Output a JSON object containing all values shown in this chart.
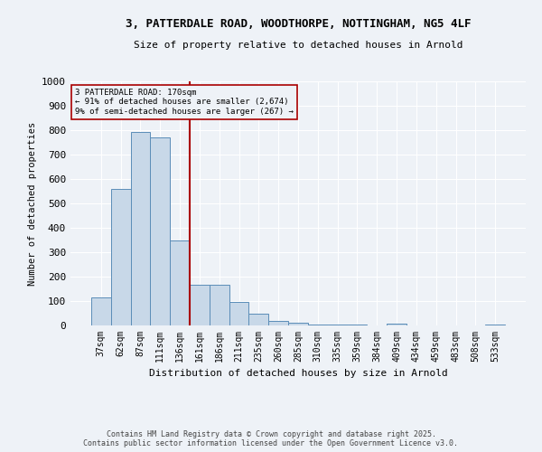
{
  "title_line1": "3, PATTERDALE ROAD, WOODTHORPE, NOTTINGHAM, NG5 4LF",
  "title_line2": "Size of property relative to detached houses in Arnold",
  "xlabel": "Distribution of detached houses by size in Arnold",
  "ylabel": "Number of detached properties",
  "bar_color": "#c8d8e8",
  "bar_edge_color": "#5b8db8",
  "categories": [
    "37sqm",
    "62sqm",
    "87sqm",
    "111sqm",
    "136sqm",
    "161sqm",
    "186sqm",
    "211sqm",
    "235sqm",
    "260sqm",
    "285sqm",
    "310sqm",
    "335sqm",
    "359sqm",
    "384sqm",
    "409sqm",
    "434sqm",
    "459sqm",
    "483sqm",
    "508sqm",
    "533sqm"
  ],
  "values": [
    113,
    560,
    793,
    770,
    348,
    165,
    165,
    98,
    50,
    18,
    12,
    5,
    2,
    2,
    0,
    8,
    0,
    0,
    0,
    0,
    3
  ],
  "ylim": [
    0,
    1000
  ],
  "yticks": [
    0,
    100,
    200,
    300,
    400,
    500,
    600,
    700,
    800,
    900,
    1000
  ],
  "vline_index": 5,
  "vline_color": "#aa0000",
  "annotation_text": "3 PATTERDALE ROAD: 170sqm\n← 91% of detached houses are smaller (2,674)\n9% of semi-detached houses are larger (267) →",
  "annotation_box_edge": "#aa0000",
  "footer_line1": "Contains HM Land Registry data © Crown copyright and database right 2025.",
  "footer_line2": "Contains public sector information licensed under the Open Government Licence v3.0.",
  "background_color": "#eef2f7",
  "grid_color": "#ffffff"
}
